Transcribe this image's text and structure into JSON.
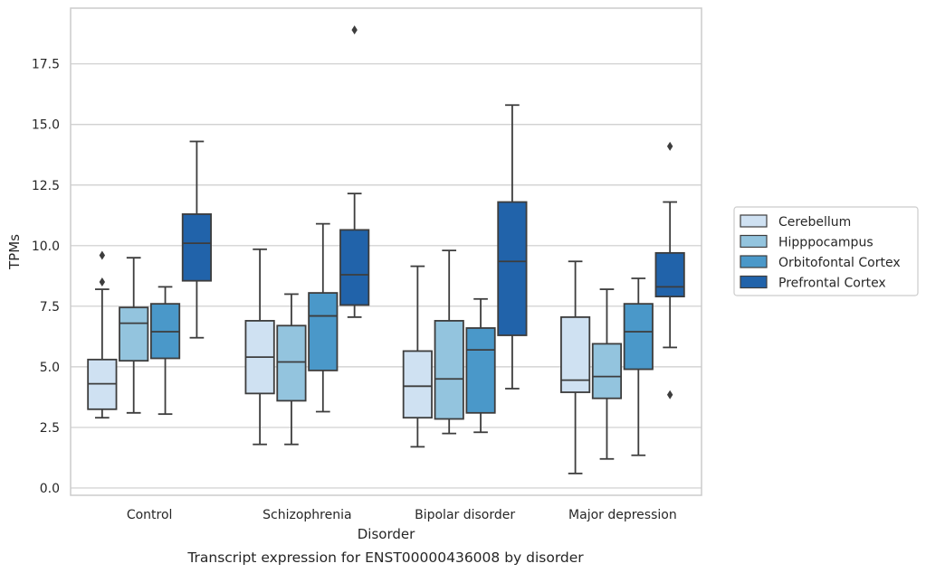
{
  "chart_data": {
    "type": "boxplot",
    "caption": "Transcript expression for ENST00000436008 by disorder",
    "xlabel": "Disorder",
    "ylabel": "TPMs",
    "ylim": [
      -0.3,
      19.8
    ],
    "yticks": [
      0.0,
      2.5,
      5.0,
      7.5,
      10.0,
      12.5,
      15.0,
      17.5
    ],
    "ytick_labels": [
      "0.0",
      "2.5",
      "5.0",
      "7.5",
      "10.0",
      "12.5",
      "15.0",
      "17.5"
    ],
    "grid": "horizontal",
    "legend_position": "right",
    "categories": [
      "Control",
      "Schizophrenia",
      "Bipolar disorder",
      "Major depression"
    ],
    "series": [
      {
        "name": "Cerebellum",
        "color": "#cfe1f2",
        "boxes": [
          {
            "whislo": 2.9,
            "q1": 3.25,
            "med": 4.3,
            "q3": 5.3,
            "whishi": 8.2,
            "fliers": [
              8.5,
              9.6
            ]
          },
          {
            "whislo": 1.8,
            "q1": 3.9,
            "med": 5.4,
            "q3": 6.9,
            "whishi": 9.85,
            "fliers": []
          },
          {
            "whislo": 1.7,
            "q1": 2.9,
            "med": 4.2,
            "q3": 5.65,
            "whishi": 9.15,
            "fliers": []
          },
          {
            "whislo": 0.6,
            "q1": 3.95,
            "med": 4.45,
            "q3": 7.05,
            "whishi": 9.35,
            "fliers": []
          }
        ]
      },
      {
        "name": "Hipppocampus",
        "color": "#93c4de",
        "boxes": [
          {
            "whislo": 3.1,
            "q1": 5.25,
            "med": 6.8,
            "q3": 7.45,
            "whishi": 9.5,
            "fliers": []
          },
          {
            "whislo": 1.8,
            "q1": 3.6,
            "med": 5.2,
            "q3": 6.7,
            "whishi": 8.0,
            "fliers": []
          },
          {
            "whislo": 2.25,
            "q1": 2.85,
            "med": 4.5,
            "q3": 6.9,
            "whishi": 9.8,
            "fliers": []
          },
          {
            "whislo": 1.2,
            "q1": 3.7,
            "med": 4.6,
            "q3": 5.95,
            "whishi": 8.2,
            "fliers": []
          }
        ]
      },
      {
        "name": "Orbitofontal Cortex",
        "color": "#4a98c9",
        "boxes": [
          {
            "whislo": 3.05,
            "q1": 5.35,
            "med": 6.45,
            "q3": 7.6,
            "whishi": 8.3,
            "fliers": []
          },
          {
            "whislo": 3.15,
            "q1": 4.85,
            "med": 7.1,
            "q3": 8.05,
            "whishi": 10.9,
            "fliers": []
          },
          {
            "whislo": 2.3,
            "q1": 3.1,
            "med": 5.7,
            "q3": 6.6,
            "whishi": 7.8,
            "fliers": []
          },
          {
            "whislo": 1.35,
            "q1": 4.9,
            "med": 6.45,
            "q3": 7.6,
            "whishi": 8.65,
            "fliers": []
          }
        ]
      },
      {
        "name": "Prefrontal Cortex",
        "color": "#2163aa",
        "boxes": [
          {
            "whislo": 6.2,
            "q1": 8.55,
            "med": 10.1,
            "q3": 11.3,
            "whishi": 14.3,
            "fliers": []
          },
          {
            "whislo": 7.05,
            "q1": 7.55,
            "med": 8.8,
            "q3": 10.65,
            "whishi": 12.15,
            "fliers": [
              18.9
            ]
          },
          {
            "whislo": 4.1,
            "q1": 6.3,
            "med": 9.35,
            "q3": 11.8,
            "whishi": 15.8,
            "fliers": []
          },
          {
            "whislo": 5.8,
            "q1": 7.9,
            "med": 8.3,
            "q3": 9.7,
            "whishi": 11.8,
            "fliers": [
              3.85,
              14.1
            ]
          }
        ]
      }
    ]
  }
}
